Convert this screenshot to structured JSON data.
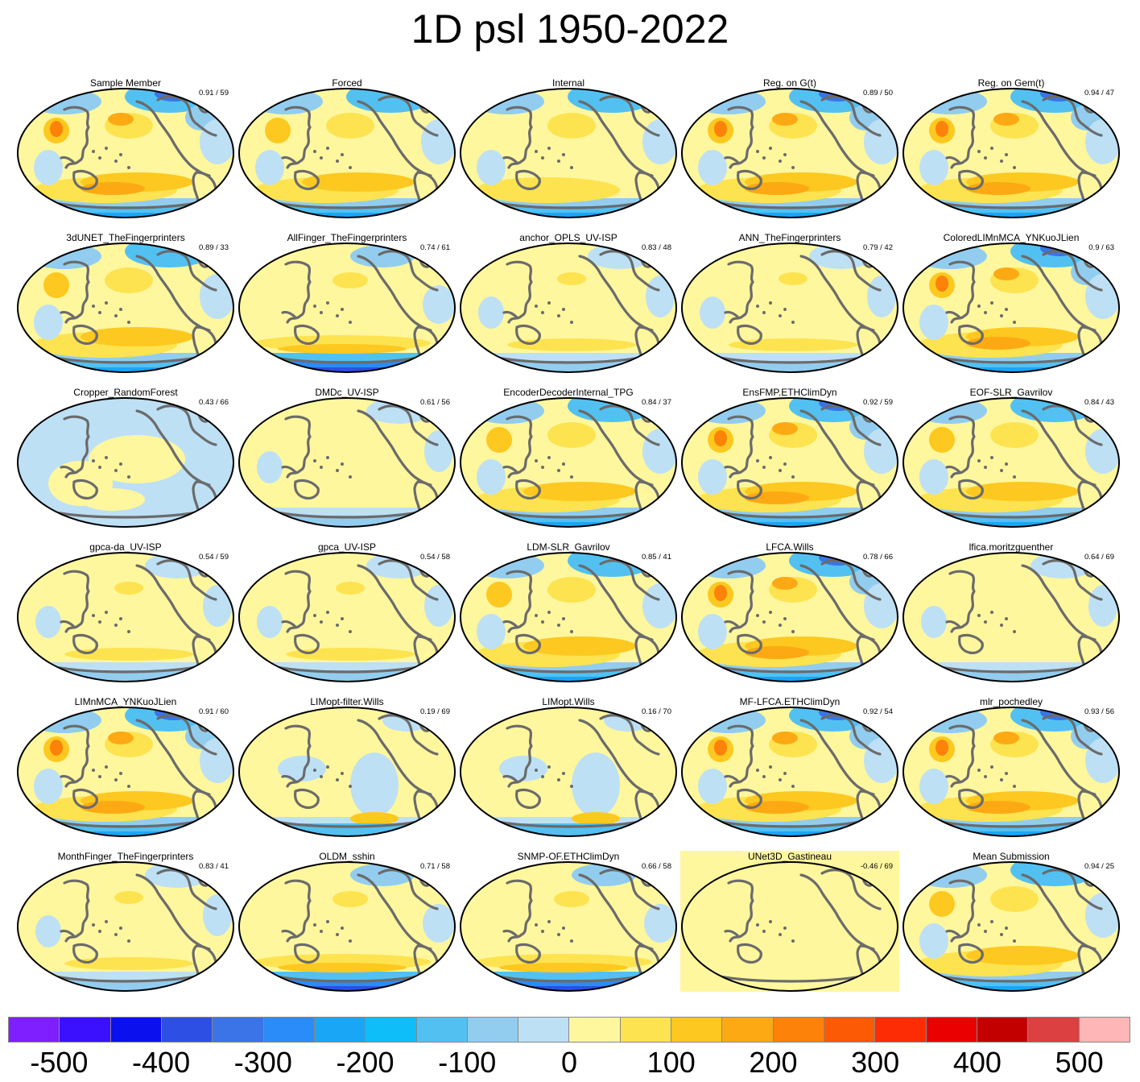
{
  "title": "1D psl 1950-2022",
  "panels": [
    {
      "label": "Sample Member",
      "score": "0.91 / 59",
      "style": "strong"
    },
    {
      "label": "Forced",
      "score": "",
      "style": "forced"
    },
    {
      "label": "Internal",
      "score": "",
      "style": "internal"
    },
    {
      "label": "Reg. on G(t)",
      "score": "0.89 / 50",
      "style": "strong"
    },
    {
      "label": "Reg. on Gem(t)",
      "score": "0.94 / 47",
      "style": "strong"
    },
    {
      "label": "3dUNET_TheFingerprinters",
      "score": "0.89 / 33",
      "style": "medium"
    },
    {
      "label": "AllFinger_TheFingerprinters",
      "score": "0.74 / 61",
      "style": "southern"
    },
    {
      "label": "anchor_OPLS_UV-ISP",
      "score": "0.83 / 48",
      "style": "weak"
    },
    {
      "label": "ANN_TheFingerprinters",
      "score": "0.79 / 42",
      "style": "weak"
    },
    {
      "label": "ColoredLIMnMCA_YNKuoJLien",
      "score": "0.9 / 63",
      "style": "strong"
    },
    {
      "label": "Cropper_RandomForest",
      "score": "0.43 / 66",
      "style": "blue"
    },
    {
      "label": "DMDc_UV-ISP",
      "score": "0.61 / 56",
      "style": "flat"
    },
    {
      "label": "EncoderDecoderInternal_TPG",
      "score": "0.84 / 37",
      "style": "medium"
    },
    {
      "label": "EnsFMP.ETHClimDyn",
      "score": "0.92 / 59",
      "style": "strong"
    },
    {
      "label": "EOF-SLR_Gavrilov",
      "score": "0.84 / 43",
      "style": "medium"
    },
    {
      "label": "gpca-da_UV-ISP",
      "score": "0.54 / 59",
      "style": "weak"
    },
    {
      "label": "gpca_UV-ISP",
      "score": "0.54 / 58",
      "style": "weak"
    },
    {
      "label": "LDM-SLR_Gavrilov",
      "score": "0.85 / 41",
      "style": "medium"
    },
    {
      "label": "LFCA.Wills",
      "score": "0.78 / 66",
      "style": "strong"
    },
    {
      "label": "lfica.moritzguenther",
      "score": "0.64 / 69",
      "style": "flat"
    },
    {
      "label": "LIMnMCA_YNKuoJLien",
      "score": "0.91 / 60",
      "style": "strong"
    },
    {
      "label": "LIMopt-filter.Wills",
      "score": "0.19 / 69",
      "style": "mixed"
    },
    {
      "label": "LIMopt.Wills",
      "score": "0.16 / 70",
      "style": "mixed"
    },
    {
      "label": "MF-LFCA.ETHClimDyn",
      "score": "0.92 / 54",
      "style": "strong"
    },
    {
      "label": "mlr_pochedley",
      "score": "0.93 / 56",
      "style": "strong"
    },
    {
      "label": "MonthFinger_TheFingerprinters",
      "score": "0.83 / 41",
      "style": "weak"
    },
    {
      "label": "OLDM_sshin",
      "score": "0.71 / 58",
      "style": "southern"
    },
    {
      "label": "SNMP-OF.ETHClimDyn",
      "score": "0.66 / 58",
      "style": "southern"
    },
    {
      "label": "UNet3D_Gastineau",
      "score": "-0.46 / 69",
      "style": "uniform"
    },
    {
      "label": "Mean Submission",
      "score": "0.94 / 25",
      "style": "medium"
    }
  ],
  "colorbar": {
    "colors": [
      "#7f1fff",
      "#3a10ff",
      "#0a10ee",
      "#2e4fe3",
      "#3b74e6",
      "#2a8cf8",
      "#19a6f7",
      "#0dbef9",
      "#52c1f2",
      "#92cdef",
      "#bde0f5",
      "#fff79e",
      "#fde34f",
      "#fdc81f",
      "#fda914",
      "#fd8209",
      "#fd5a06",
      "#fd2c04",
      "#ea0000",
      "#c20000",
      "#dc4040",
      "#ffb6b6"
    ],
    "ticks": [
      "-500",
      "-400",
      "-300",
      "-200",
      "-100",
      "0",
      "100",
      "200",
      "300",
      "400",
      "500"
    ]
  }
}
